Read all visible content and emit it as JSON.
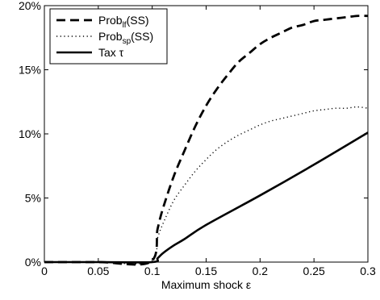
{
  "chart_data": {
    "type": "line",
    "xlabel": "Maximum shock ε",
    "ylabel": "",
    "xlim": [
      0,
      0.3
    ],
    "ylim": [
      0,
      20
    ],
    "x_ticks": [
      0,
      0.05,
      0.1,
      0.15,
      0.2,
      0.25,
      0.3
    ],
    "x_tick_labels": [
      "0",
      "0.05",
      "0.1",
      "0.15",
      "0.2",
      "0.25",
      "0.3"
    ],
    "y_ticks": [
      0,
      5,
      10,
      15,
      20
    ],
    "y_tick_labels": [
      "0%",
      "5%",
      "10%",
      "15%",
      "20%"
    ],
    "grid": false,
    "legend_position": "top-left",
    "series": [
      {
        "name": "Prob_lf(SS)",
        "legend": {
          "main": "Prob",
          "sub": "lf",
          "suffix": "(SS)"
        },
        "style": "dashed",
        "x": [
          0,
          0.05,
          0.098,
          0.105,
          0.11,
          0.12,
          0.13,
          0.14,
          0.15,
          0.16,
          0.17,
          0.18,
          0.19,
          0.2,
          0.21,
          0.22,
          0.23,
          0.24,
          0.25,
          0.26,
          0.27,
          0.28,
          0.29,
          0.3
        ],
        "values": [
          0,
          0,
          0,
          2.6,
          4.2,
          6.7,
          8.7,
          10.6,
          12.2,
          13.5,
          14.6,
          15.6,
          16.3,
          17.0,
          17.5,
          17.9,
          18.3,
          18.5,
          18.8,
          18.9,
          19.0,
          19.1,
          19.2,
          19.2
        ]
      },
      {
        "name": "Prob_sp(SS)",
        "legend": {
          "main": "Prob",
          "sub": "sp",
          "suffix": "(SS)"
        },
        "style": "dotted",
        "x": [
          0,
          0.05,
          0.098,
          0.105,
          0.11,
          0.12,
          0.13,
          0.14,
          0.15,
          0.16,
          0.17,
          0.18,
          0.19,
          0.2,
          0.21,
          0.22,
          0.23,
          0.24,
          0.25,
          0.26,
          0.27,
          0.28,
          0.29,
          0.3
        ],
        "values": [
          0,
          0,
          0,
          1.9,
          3.0,
          4.8,
          6.0,
          7.1,
          8.0,
          8.8,
          9.4,
          9.9,
          10.3,
          10.7,
          11.0,
          11.2,
          11.4,
          11.6,
          11.8,
          11.9,
          12.0,
          12.0,
          12.1,
          12.0
        ]
      },
      {
        "name": "Tax τ",
        "legend": {
          "main": "Tax τ",
          "sub": "",
          "suffix": ""
        },
        "style": "solid",
        "x": [
          0,
          0.05,
          0.1,
          0.105,
          0.11,
          0.12,
          0.13,
          0.15,
          0.2,
          0.25,
          0.3
        ],
        "values": [
          0,
          0,
          0,
          0.3,
          0.7,
          1.3,
          1.8,
          2.9,
          5.2,
          7.6,
          10.1
        ]
      }
    ]
  }
}
